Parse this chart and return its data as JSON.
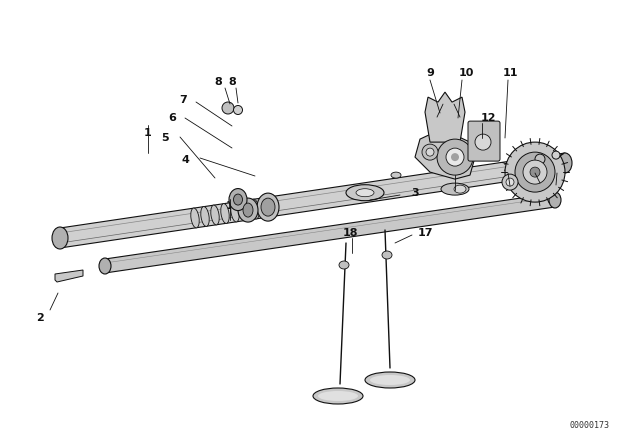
{
  "background_color": "#ffffff",
  "line_color": "#111111",
  "fill_light": "#dddddd",
  "fill_mid": "#bbbbbb",
  "fill_dark": "#888888",
  "figure_id": "00000173",
  "xlim": [
    0,
    640
  ],
  "ylim": [
    0,
    448
  ]
}
